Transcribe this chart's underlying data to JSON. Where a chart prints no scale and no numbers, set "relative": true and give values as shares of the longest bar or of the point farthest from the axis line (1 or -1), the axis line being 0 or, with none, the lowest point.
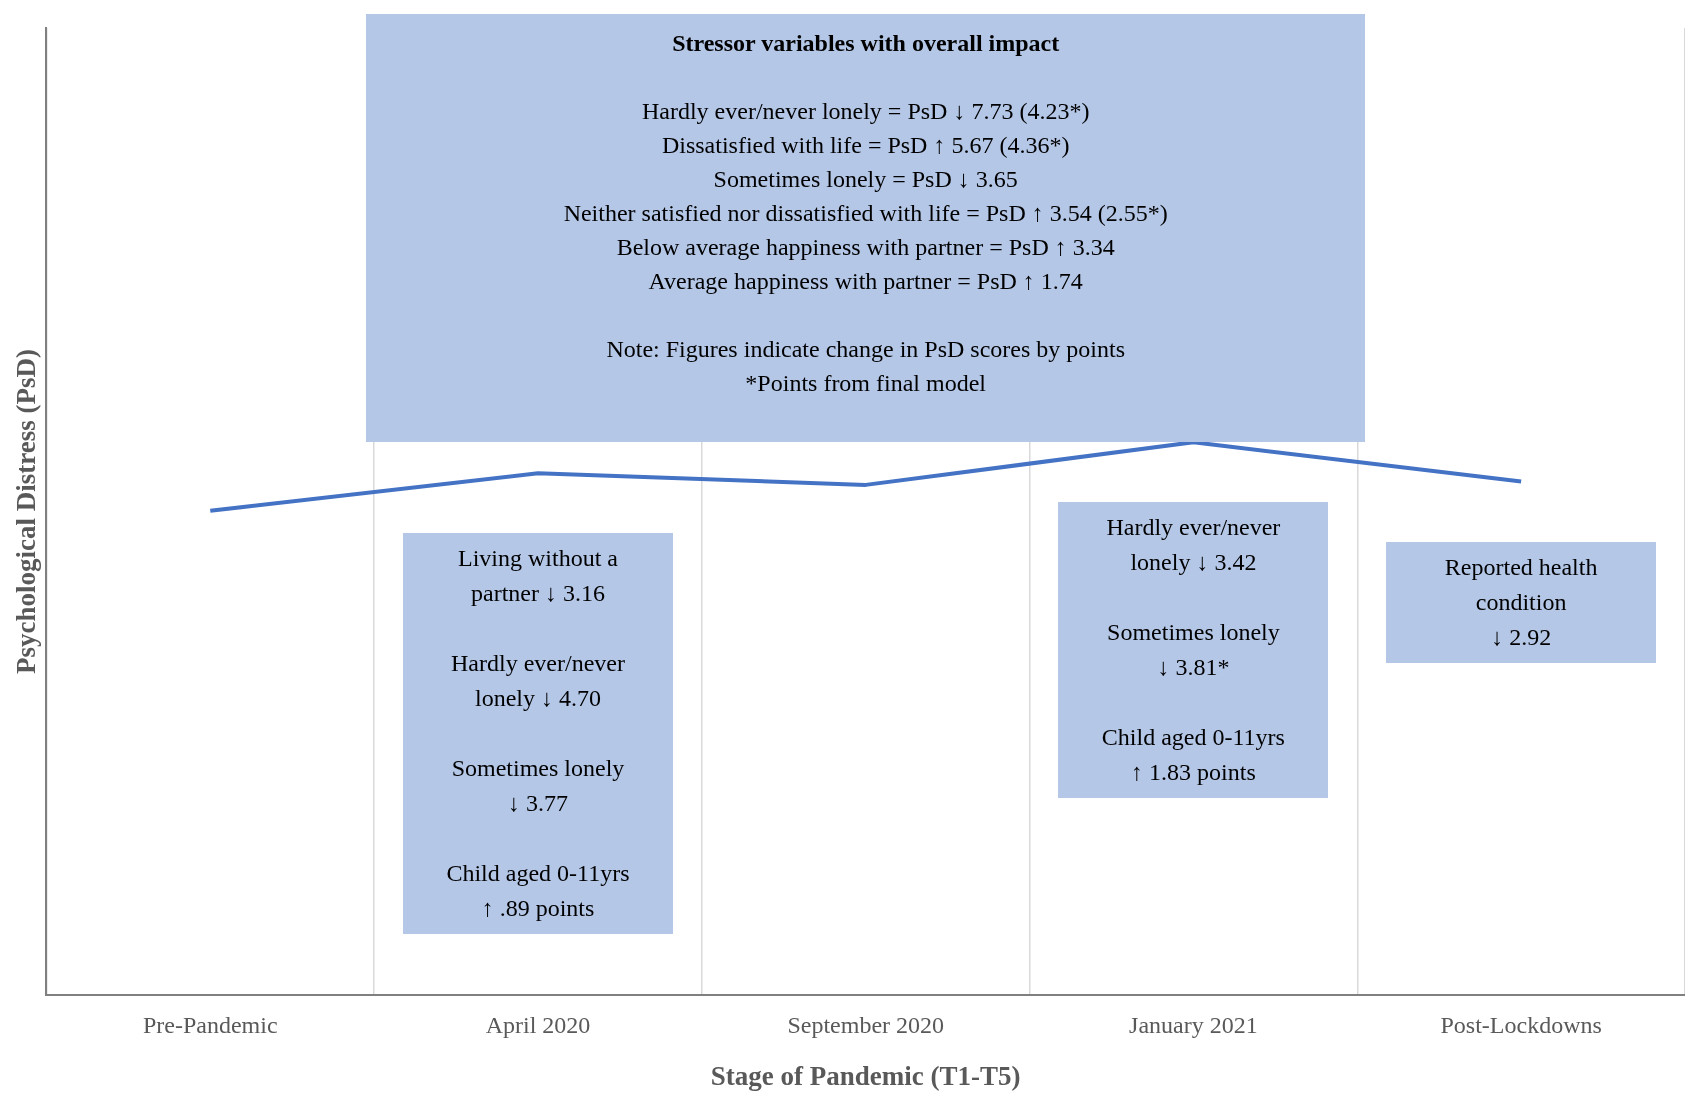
{
  "chart_data": {
    "type": "line",
    "title": "Stressor variables with overall impact",
    "xlabel": "Stage of Pandemic (T1-T5)",
    "ylabel": "Psychological Distress (PsD)",
    "categories": [
      "Pre-Pandemic",
      "April 2020",
      "September 2020",
      "January 2021",
      "Post-Lockdowns"
    ],
    "relative": true,
    "series": [
      {
        "color": "#4472c4",
        "values": [
          0.876,
          0.944,
          0.923,
          1,
          0.929
        ]
      }
    ],
    "grid": "x",
    "legend": false,
    "marker": "none",
    "line_style": "solid",
    "annotations": [
      "Hardly ever/never lonely = PsD ↓ 7.73 (4.23*)\nDissatisfied with life = PsD ↑ 5.67 (4.36*)\nSometimes lonely = PsD ↓ 3.65\nNeither satisfied nor dissatisfied with life =  PsD ↑ 3.54 (2.55*)\nBelow average happiness with partner = PsD ↑ 3.34\nAverage happiness with partner = PsD ↑ 1.74",
      "Note: Figures indicate change in PsD scores by points\n*Points from final model",
      "Living without a\npartner ↓ 3.16\n\nHardly ever/never\nlonely ↓ 4.70\n\nSometimes lonely\n↓ 3.77\n\nChild aged 0-11yrs\n↑ .89 points",
      "Hardly ever/never\nlonely ↓ 3.42\n\nSometimes lonely\n↓ 3.81*\n\nChild aged 0-11yrs\n↑ 1.83 points",
      "Reported health\ncondition\n↓ 2.92"
    ]
  }
}
